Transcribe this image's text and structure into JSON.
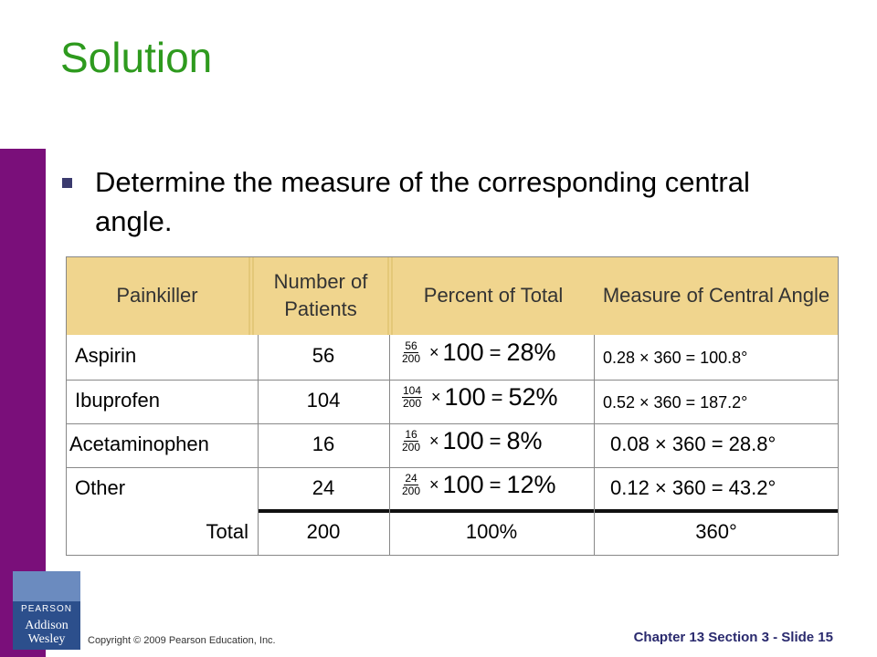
{
  "title": "Solution",
  "bullet": "Determine the measure of the corresponding central angle.",
  "table": {
    "headers": [
      "Painkiller",
      "Number of Patients",
      "Percent of Total",
      "Measure of Central Angle"
    ],
    "rows": [
      {
        "name": "Aspirin",
        "count": "56",
        "frac_num": "56",
        "frac_den": "200",
        "hundred": "100",
        "percent": "28%",
        "angle": "0.28 × 360 = 100.8°"
      },
      {
        "name": "Ibuprofen",
        "count": "104",
        "frac_num": "104",
        "frac_den": "200",
        "hundred": "100",
        "percent": "52%",
        "angle": "0.52 × 360 = 187.2°"
      },
      {
        "name": "Acetaminophen",
        "count": "16",
        "frac_num": "16",
        "frac_den": "200",
        "hundred": "100",
        "percent": "8%",
        "angle": "0.08 × 360 = 28.8°"
      },
      {
        "name": "Other",
        "count": "24",
        "frac_num": "24",
        "frac_den": "200",
        "hundred": "100",
        "percent": "12%",
        "angle": "0.12 × 360 = 43.2°"
      }
    ],
    "total": {
      "label": "Total",
      "count": "200",
      "percent": "100%",
      "angle": "360°"
    }
  },
  "footer": {
    "logo_top": "PEARSON",
    "logo_bottom_1": "Addison",
    "logo_bottom_2": "Wesley",
    "copyright": "Copyright © 2009 Pearson Education, Inc.",
    "slide": "Chapter 13 Section 3 - Slide 15"
  },
  "colors": {
    "title": "#2e9a1e",
    "header_fill": "#f0d58e",
    "side_bar": "#7a0f7a"
  }
}
